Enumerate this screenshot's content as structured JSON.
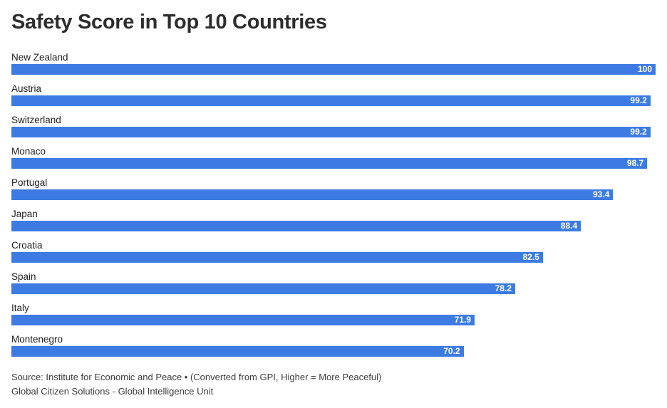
{
  "header": {
    "title": "Safety Score in Top 10 Countries"
  },
  "chart_data": {
    "type": "bar",
    "orientation": "horizontal",
    "title": "Safety Score in Top 10 Countries",
    "categories": [
      "New Zealand",
      "Austria",
      "Switzerland",
      "Monaco",
      "Portugal",
      "Japan",
      "Croatia",
      "Spain",
      "Italy",
      "Montenegro"
    ],
    "values": [
      100,
      99.2,
      99.2,
      98.7,
      93.4,
      88.4,
      82.5,
      78.2,
      71.9,
      70.2
    ],
    "value_labels": [
      "100",
      "99.2",
      "99.2",
      "98.7",
      "93.4",
      "88.4",
      "82.5",
      "78.2",
      "71.9",
      "70.2"
    ],
    "xlabel": "",
    "ylabel": "",
    "xlim": [
      0,
      100
    ],
    "grid": false,
    "legend": false,
    "data_labels_position": "inside-end"
  },
  "colors": {
    "bar": "#3d7be3",
    "bar_value_text": "#ffffff",
    "title_text": "#2d2d2d",
    "label_text": "#1f1f1f",
    "footer_text": "#3c3c3c",
    "background": "#ffffff"
  },
  "footer": {
    "source_line": "Source: Institute for Economic and Peace • (Converted from GPI, Higher = More Peaceful)",
    "credit_line": "Global Citizen Solutions - Global Intelligence Unit"
  }
}
